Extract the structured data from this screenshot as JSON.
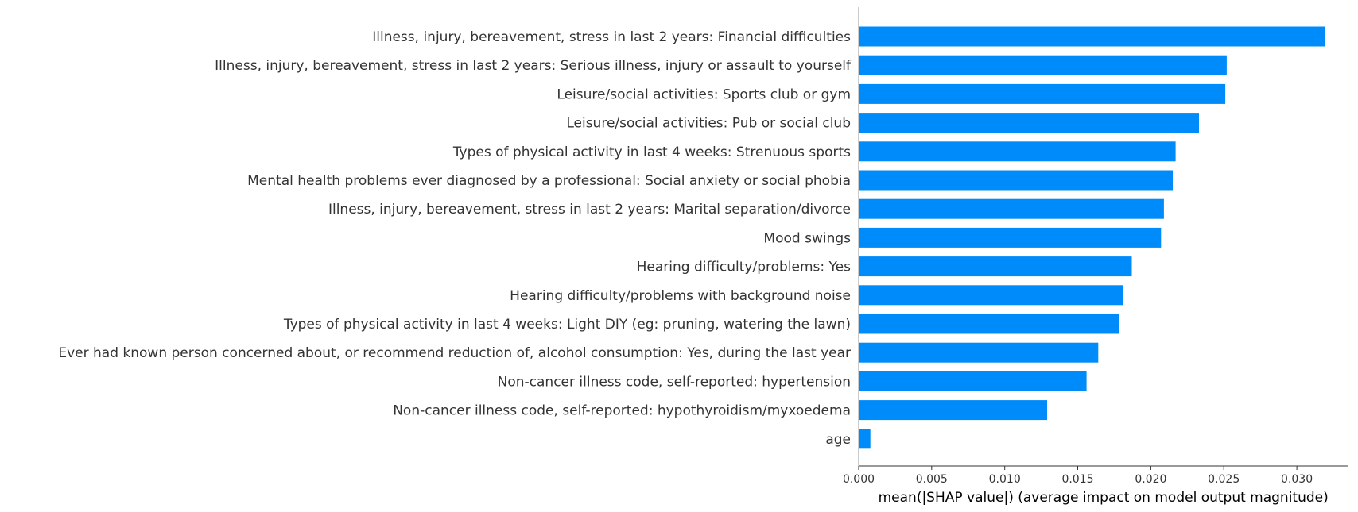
{
  "chart_data": {
    "type": "bar",
    "orientation": "horizontal",
    "categories": [
      "Illness, injury, bereavement, stress in last 2 years: Financial difficulties",
      "Illness, injury, bereavement, stress in last 2 years: Serious illness, injury or assault to yourself",
      "Leisure/social activities: Sports club or gym",
      "Leisure/social activities: Pub or social club",
      "Types of physical activity in last 4 weeks: Strenuous sports",
      "Mental health problems ever diagnosed by a professional: Social anxiety or social phobia",
      "Illness, injury, bereavement, stress in last 2 years: Marital separation/divorce",
      "Mood swings",
      "Hearing difficulty/problems: Yes",
      "Hearing difficulty/problems with background noise",
      "Types of physical activity in last 4 weeks: Light DIY (eg: pruning, watering the lawn)",
      "Ever had known person concerned about, or recommend reduction of, alcohol consumption: Yes, during the last year",
      "Non-cancer illness code, self-reported: hypertension",
      "Non-cancer illness code, self-reported: hypothyroidism/myxoedema",
      "age"
    ],
    "values": [
      0.0319,
      0.0252,
      0.0251,
      0.0233,
      0.0217,
      0.0215,
      0.0209,
      0.0207,
      0.0187,
      0.0181,
      0.0178,
      0.0164,
      0.0156,
      0.0129,
      0.0008
    ],
    "xlabel": "mean(|SHAP value|) (average impact on model output magnitude)",
    "ylabel": "",
    "xlim": [
      0,
      0.0335
    ],
    "xticks": [
      "0.000",
      "0.005",
      "0.010",
      "0.015",
      "0.020",
      "0.025",
      "0.030"
    ],
    "bar_color": "#008bfb",
    "grid": false
  }
}
